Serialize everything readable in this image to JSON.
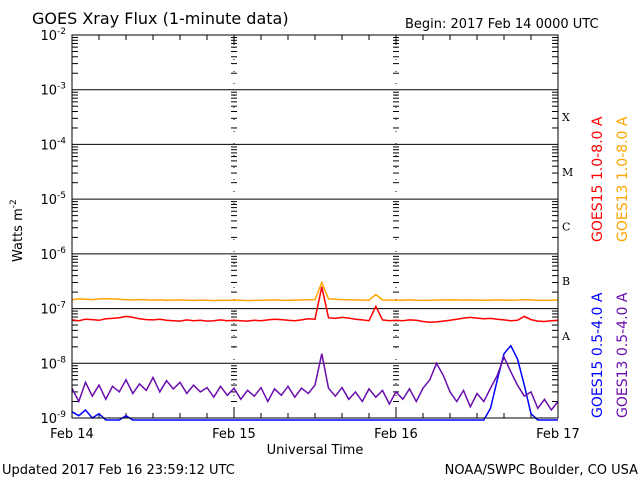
{
  "chart_data": {
    "type": "line",
    "title": "GOES Xray Flux (1-minute data)",
    "begin_label": "Begin:  2017 Feb 14 0000 UTC",
    "xlabel": "Universal Time",
    "ylabel": "Watts m",
    "ylabel_sup": "-2",
    "yscale": "log",
    "ylim": [
      1e-09,
      0.01
    ],
    "xlim_hours": [
      0,
      72
    ],
    "x_ticks": [
      {
        "hour": 0,
        "label": "Feb 14"
      },
      {
        "hour": 24,
        "label": "Feb 15"
      },
      {
        "hour": 48,
        "label": "Feb 16"
      },
      {
        "hour": 72,
        "label": "Feb 17"
      }
    ],
    "y_ticks": [
      {
        "exp": -9
      },
      {
        "exp": -8
      },
      {
        "exp": -7
      },
      {
        "exp": -6
      },
      {
        "exp": -5
      },
      {
        "exp": -4
      },
      {
        "exp": -3
      },
      {
        "exp": -2
      }
    ],
    "y_tick_base": "10",
    "flare_classes": [
      {
        "label": "X",
        "exp": -3.5
      },
      {
        "label": "M",
        "exp": -4.5
      },
      {
        "label": "C",
        "exp": -5.5
      },
      {
        "label": "B",
        "exp": -6.5
      },
      {
        "label": "A",
        "exp": -7.5
      }
    ],
    "sample_interval_hours": 1,
    "series": [
      {
        "name": "GOES15 1.0-8.0 A",
        "color": "#ff0000",
        "values": [
          6.2e-08,
          6e-08,
          6.4e-08,
          6.3e-08,
          6.1e-08,
          6.5e-08,
          6.6e-08,
          6.8e-08,
          7.2e-08,
          6.9e-08,
          6.5e-08,
          6.3e-08,
          6.2e-08,
          6.4e-08,
          6.1e-08,
          6e-08,
          5.9e-08,
          6.2e-08,
          6e-08,
          6.1e-08,
          5.9e-08,
          6e-08,
          6.2e-08,
          6e-08,
          6.1e-08,
          6e-08,
          5.9e-08,
          6.1e-08,
          6e-08,
          6.2e-08,
          6.4e-08,
          6.3e-08,
          6.1e-08,
          6e-08,
          6.2e-08,
          6.5e-08,
          6.4e-08,
          2.5e-07,
          6.8e-08,
          6.6e-08,
          6.9e-08,
          6.7e-08,
          6.4e-08,
          6.2e-08,
          6e-08,
          1.1e-07,
          6.2e-08,
          6e-08,
          6.1e-08,
          6e-08,
          6.2e-08,
          6.1e-08,
          5.8e-08,
          5.6e-08,
          5.7e-08,
          5.9e-08,
          6.1e-08,
          6.4e-08,
          6.7e-08,
          6.9e-08,
          6.7e-08,
          6.5e-08,
          6.6e-08,
          6.4e-08,
          6.2e-08,
          6e-08,
          6.1e-08,
          7.2e-08,
          6.3e-08,
          5.9e-08,
          5.8e-08,
          6e-08,
          6.1e-08
        ]
      },
      {
        "name": "GOES13 1.0-8.0 A",
        "color": "#ffa500",
        "values": [
          1.45e-07,
          1.5e-07,
          1.48e-07,
          1.46e-07,
          1.5e-07,
          1.52e-07,
          1.5e-07,
          1.48e-07,
          1.45e-07,
          1.44e-07,
          1.46e-07,
          1.45e-07,
          1.43e-07,
          1.44e-07,
          1.42e-07,
          1.43e-07,
          1.44e-07,
          1.42e-07,
          1.41e-07,
          1.43e-07,
          1.42e-07,
          1.4e-07,
          1.42e-07,
          1.41e-07,
          1.43e-07,
          1.42e-07,
          1.4e-07,
          1.41e-07,
          1.42e-07,
          1.43e-07,
          1.44e-07,
          1.42e-07,
          1.41e-07,
          1.43e-07,
          1.44e-07,
          1.45e-07,
          1.46e-07,
          3e-07,
          1.5e-07,
          1.48e-07,
          1.46e-07,
          1.45e-07,
          1.44e-07,
          1.43e-07,
          1.42e-07,
          1.8e-07,
          1.44e-07,
          1.43e-07,
          1.42e-07,
          1.43e-07,
          1.44e-07,
          1.42e-07,
          1.41e-07,
          1.42e-07,
          1.43e-07,
          1.44e-07,
          1.45e-07,
          1.44e-07,
          1.43e-07,
          1.44e-07,
          1.43e-07,
          1.42e-07,
          1.43e-07,
          1.44e-07,
          1.43e-07,
          1.42e-07,
          1.43e-07,
          1.46e-07,
          1.44e-07,
          1.42e-07,
          1.41e-07,
          1.42e-07,
          1.43e-07
        ]
      },
      {
        "name": "GOES15 0.5-4.0 A",
        "color": "#0000ff",
        "values": [
          1.3e-09,
          1.1e-09,
          1.4e-09,
          1e-09,
          1.2e-09,
          9e-10,
          8e-10,
          8e-10,
          1.1e-09,
          8e-10,
          8e-10,
          8e-10,
          8e-10,
          8e-10,
          8e-10,
          8e-10,
          8e-10,
          8e-10,
          8e-10,
          8e-10,
          8e-10,
          8e-10,
          8e-10,
          8e-10,
          8e-10,
          8e-10,
          8e-10,
          8e-10,
          8e-10,
          8e-10,
          8e-10,
          8e-10,
          8e-10,
          8e-10,
          8e-10,
          8e-10,
          8e-10,
          8e-10,
          8e-10,
          8e-10,
          8e-10,
          8e-10,
          8e-10,
          8e-10,
          8e-10,
          8e-10,
          8e-10,
          8e-10,
          8e-10,
          8e-10,
          8e-10,
          8e-10,
          8e-10,
          8e-10,
          8e-10,
          8e-10,
          8e-10,
          8e-10,
          8e-10,
          8e-10,
          8e-10,
          8e-10,
          1.5e-09,
          5e-09,
          1.5e-08,
          2.1e-08,
          1.2e-08,
          4e-09,
          1.2e-09,
          8e-10,
          8e-10,
          8e-10,
          8e-10
        ]
      },
      {
        "name": "GOES13 0.5-4.0 A",
        "color": "#6a0dad",
        "values": [
          3.5e-09,
          2e-09,
          4.5e-09,
          2.5e-09,
          4e-09,
          2.2e-09,
          3.8e-09,
          3e-09,
          5e-09,
          2.8e-09,
          4.2e-09,
          3.2e-09,
          5.5e-09,
          3e-09,
          4.8e-09,
          3.4e-09,
          4.5e-09,
          2.8e-09,
          4e-09,
          3e-09,
          3.6e-09,
          2.4e-09,
          3.8e-09,
          2.6e-09,
          3.5e-09,
          2.2e-09,
          3.2e-09,
          2.5e-09,
          3.6e-09,
          2e-09,
          3.4e-09,
          2.6e-09,
          3.8e-09,
          2.4e-09,
          3.5e-09,
          2.8e-09,
          4e-09,
          1.5e-08,
          3.5e-09,
          2.5e-09,
          3.6e-09,
          2.2e-09,
          3e-09,
          2e-09,
          3.4e-09,
          2.4e-09,
          3.2e-09,
          1.8e-09,
          3e-09,
          2.2e-09,
          3.4e-09,
          2e-09,
          3.5e-09,
          5e-09,
          1e-08,
          6e-09,
          3e-09,
          2e-09,
          3.2e-09,
          1.6e-09,
          2.8e-09,
          2e-09,
          3.5e-09,
          6e-09,
          1.3e-08,
          7e-09,
          4e-09,
          2.5e-09,
          3e-09,
          1.5e-09,
          2.2e-09,
          1.4e-09,
          2e-09
        ]
      }
    ]
  },
  "footer": {
    "updated": "Updated 2017 Feb 16 23:59:12 UTC",
    "credit": "NOAA/SWPC Boulder, CO USA"
  }
}
